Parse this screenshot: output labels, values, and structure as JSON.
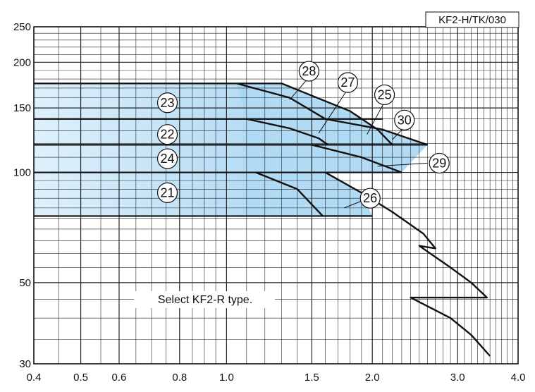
{
  "chart_data": {
    "type": "area",
    "title": "",
    "xlabel": "",
    "ylabel": "",
    "x_scale": "log",
    "y_scale": "log",
    "xlim": [
      0.4,
      4.0
    ],
    "ylim": [
      30,
      250
    ],
    "grid": true,
    "model_label": "KF2-H/TK/030",
    "note": "Select KF2-R type.",
    "x_ticks": [
      "0.4",
      "0.5",
      "0.6",
      "0.8",
      "1.0",
      "1.5",
      "2.0",
      "3.0",
      "4.0"
    ],
    "y_ticks": [
      "30",
      "50",
      "100",
      "150",
      "200",
      "250"
    ],
    "fill_color": "#a9d6f3",
    "fill_color_light": "#d8eefb",
    "line_color": "#111111",
    "bands": [
      {
        "name": "23",
        "y_top": 175,
        "y_bottom": 140
      },
      {
        "name": "22",
        "y_top": 140,
        "y_bottom": 119
      },
      {
        "name": "24",
        "y_top": 119,
        "y_bottom": 100
      },
      {
        "name": "21",
        "y_top": 100,
        "y_bottom": 76
      }
    ],
    "curves": [
      {
        "name": "28",
        "points": [
          [
            1.05,
            175
          ],
          [
            1.35,
            160
          ],
          [
            1.6,
            140
          ]
        ]
      },
      {
        "name": "25",
        "points": [
          [
            1.3,
            175
          ],
          [
            1.8,
            147
          ],
          [
            2.05,
            131
          ],
          [
            2.2,
            119
          ]
        ]
      },
      {
        "name": "30",
        "points": [
          [
            1.6,
            140
          ],
          [
            2.1,
            131
          ],
          [
            2.6,
            119
          ]
        ]
      },
      {
        "name": "27",
        "points": [
          [
            1.1,
            140
          ],
          [
            1.35,
            132
          ],
          [
            1.55,
            124
          ],
          [
            1.62,
            119
          ]
        ]
      },
      {
        "name": "29",
        "points": [
          [
            1.5,
            119
          ],
          [
            1.9,
            110
          ],
          [
            2.3,
            100
          ]
        ]
      },
      {
        "name": "26",
        "points": [
          [
            1.15,
            100
          ],
          [
            1.4,
            90
          ],
          [
            1.58,
            76
          ]
        ]
      },
      {
        "name": "extension",
        "points": [
          [
            1.6,
            100
          ],
          [
            1.9,
            88
          ],
          [
            2.2,
            78
          ],
          [
            2.55,
            68
          ],
          [
            2.7,
            62
          ],
          [
            2.5,
            63
          ],
          [
            2.9,
            55
          ],
          [
            3.2,
            50
          ],
          [
            3.45,
            45.5
          ],
          [
            2.4,
            45.5
          ],
          [
            2.9,
            40
          ],
          [
            3.2,
            36
          ],
          [
            3.5,
            31.5
          ]
        ]
      }
    ],
    "circle_labels": [
      {
        "text": "23",
        "x": 0.755,
        "y": 155
      },
      {
        "text": "22",
        "x": 0.755,
        "y": 127
      },
      {
        "text": "24",
        "x": 0.755,
        "y": 109
      },
      {
        "text": "21",
        "x": 0.755,
        "y": 88
      },
      {
        "text": "28",
        "x": 1.48,
        "y": 189
      },
      {
        "text": "27",
        "x": 1.78,
        "y": 176
      },
      {
        "text": "25",
        "x": 2.12,
        "y": 163
      },
      {
        "text": "30",
        "x": 2.33,
        "y": 139
      },
      {
        "text": "29",
        "x": 2.75,
        "y": 106
      },
      {
        "text": "26",
        "x": 1.98,
        "y": 85
      }
    ]
  }
}
